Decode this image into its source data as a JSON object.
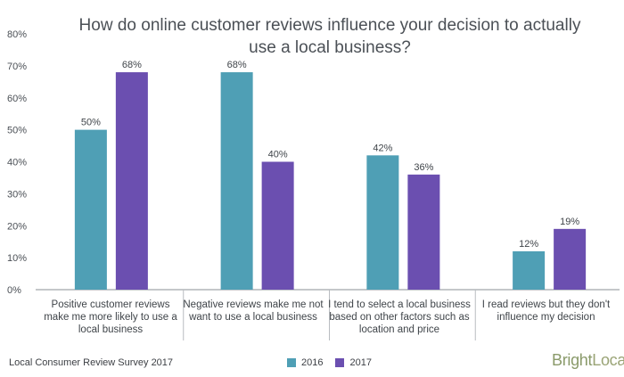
{
  "chart_data": {
    "type": "bar",
    "title": "How do online customer reviews influence your decision to actually use a local business?",
    "categories": [
      "Positive customer reviews make me more likely to use a local business",
      "Negative reviews make me not want to use a local business",
      "I tend to select a local business based on other factors such as location and price",
      "I read reviews but they don't influence my decision"
    ],
    "series": [
      {
        "name": "2016",
        "values": [
          50,
          68,
          42,
          12
        ],
        "labels": [
          "50%",
          "68%",
          "42%",
          "12%"
        ],
        "color": "#4f9fb5"
      },
      {
        "name": "2017",
        "values": [
          68,
          40,
          36,
          19
        ],
        "labels": [
          "68%",
          "40%",
          "36%",
          "19%"
        ],
        "color": "#6b4fb0"
      }
    ],
    "ylim": [
      0,
      80
    ],
    "yticks": [
      "0%",
      "10%",
      "20%",
      "30%",
      "40%",
      "50%",
      "60%",
      "70%",
      "80%"
    ],
    "grid": false,
    "legend": "bottom-center"
  },
  "footer": {
    "source": "Local Consumer Review Survey 2017",
    "brand_part1": "Bright",
    "brand_part2": "Local"
  }
}
